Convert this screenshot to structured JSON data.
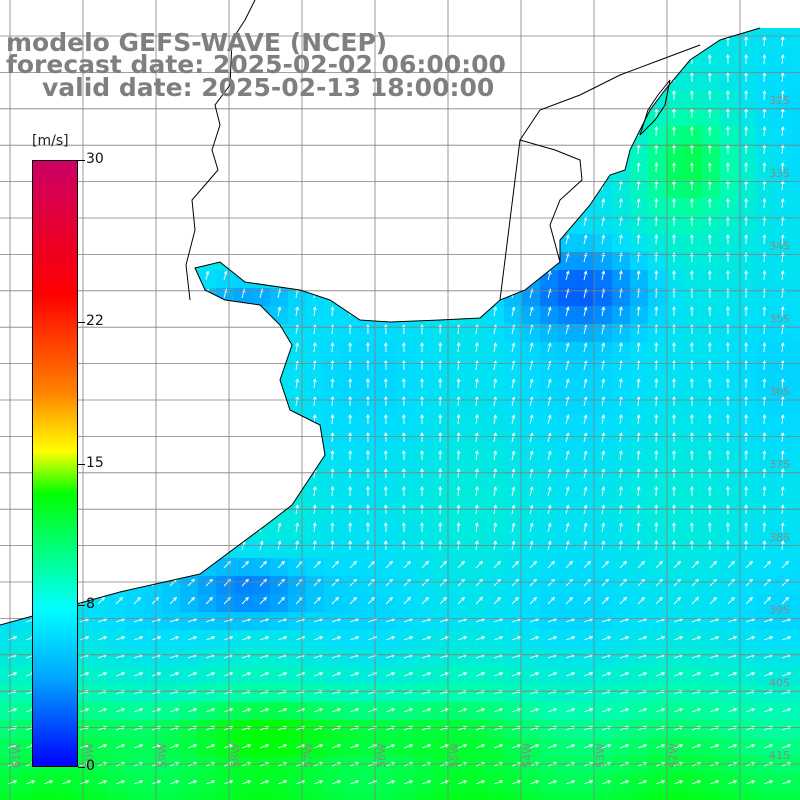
{
  "title": {
    "line1": "modelo GEFS-WAVE (NCEP)",
    "line2": "forecast date: 2025-02-02 06:00:00",
    "line3": "valid date: 2025-02-13 18:00:00"
  },
  "colorbar": {
    "units": "[m/s]",
    "ticks": [
      "30",
      "22",
      "15",
      "8",
      "0"
    ],
    "tick_values": [
      30,
      22,
      15,
      8,
      0
    ],
    "min": 0,
    "max": 30,
    "colors": [
      "#0000ff",
      "#00aaff",
      "#00ffff",
      "#00ff00",
      "#ffff00",
      "#ff8000",
      "#ff0000",
      "#cc0066"
    ]
  },
  "map": {
    "lat_labels": [
      "32S",
      "33S",
      "34S",
      "35S",
      "36S",
      "37S",
      "38S",
      "39S",
      "40S",
      "41S"
    ],
    "lon_labels": [
      "61W",
      "60W",
      "59W",
      "58W",
      "57W",
      "56W",
      "55W",
      "54W",
      "53W",
      "52W"
    ],
    "land_color": "#ffffff",
    "grid_color": "#808080",
    "coast_color": "#000000",
    "arrow_color": "#ffffff"
  }
}
